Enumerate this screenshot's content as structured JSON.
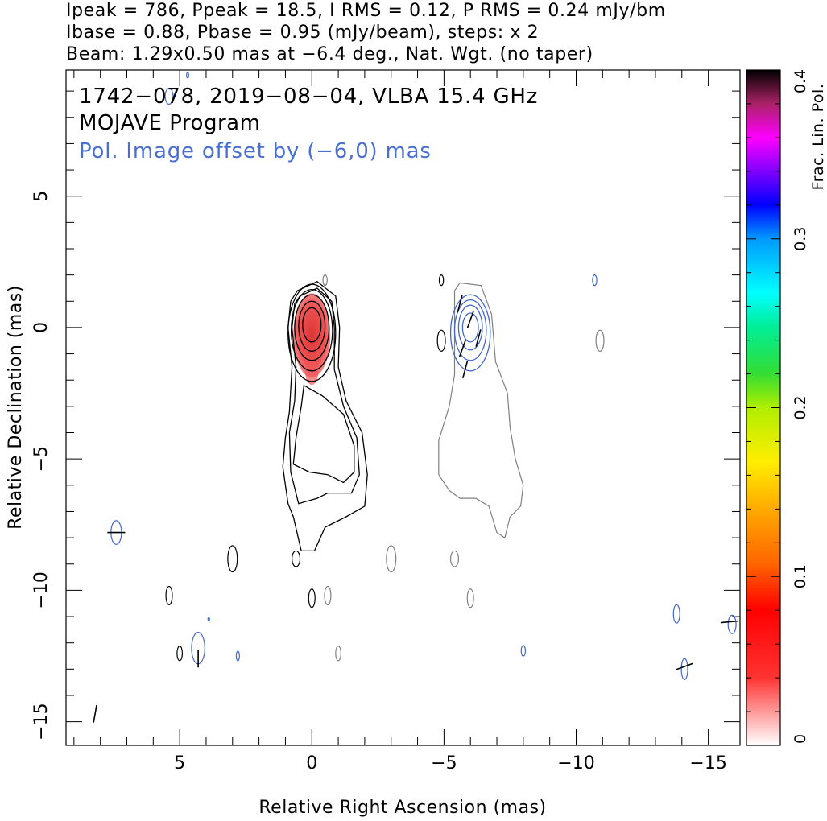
{
  "header": {
    "line1": "Ipeak = 786, Ppeak = 18.5, I RMS = 0.12, P RMS = 0.24 mJy/bm",
    "line2": "Ibase = 0.88, Pbase = 0.95 (mJy/beam), steps: x 2",
    "line3": "Beam: 1.29x0.50 mas at −6.4 deg., Nat. Wgt. (no taper)"
  },
  "chart_data": {
    "type": "contour",
    "annotations": {
      "source_line": "1742−078, 2019−08−04, VLBA 15.4 GHz",
      "program": "MOJAVE Program",
      "pol_offset": "Pol. Image offset by (−6,0) mas"
    },
    "xlabel": "Relative Right Ascension (mas)",
    "ylabel": "Relative Declination (mas)",
    "xlim": [
      9.3,
      -16.2
    ],
    "ylim": [
      -15.9,
      9.8
    ],
    "x_ticks": [
      {
        "value": 5,
        "label": "5"
      },
      {
        "value": 0,
        "label": "0"
      },
      {
        "value": -5,
        "label": "−5"
      },
      {
        "value": -10,
        "label": "−10"
      },
      {
        "value": -15,
        "label": "−15"
      }
    ],
    "y_ticks": [
      {
        "value": 5,
        "label": "5"
      },
      {
        "value": 0,
        "label": "0"
      },
      {
        "value": -5,
        "label": "−5"
      },
      {
        "value": -10,
        "label": "−10"
      },
      {
        "value": -15,
        "label": "−15"
      }
    ],
    "colorbar": {
      "label": "Frac. Lin. Pol.",
      "range": [
        0,
        0.4
      ],
      "ticks": [
        {
          "value": 0,
          "label": "0"
        },
        {
          "value": 0.1,
          "label": "0.1"
        },
        {
          "value": 0.2,
          "label": "0.2"
        },
        {
          "value": 0.3,
          "label": "0.3"
        },
        {
          "value": 0.4,
          "label": "0.4"
        }
      ]
    },
    "stokes_I_core": {
      "x": 0.0,
      "y": 0.0
    },
    "polarization_core": {
      "x": -6.0,
      "y": 0.0
    },
    "total_intensity_contours": [
      {
        "cx": 0.0,
        "cy": 0.1,
        "rx": 0.35,
        "ry": 0.65
      },
      {
        "cx": 0.0,
        "cy": 0.05,
        "rx": 0.5,
        "ry": 0.95
      },
      {
        "cx": 0.0,
        "cy": 0.0,
        "rx": 0.65,
        "ry": 1.25
      },
      {
        "cx": 0.0,
        "cy": -0.1,
        "rx": 0.78,
        "ry": 1.55
      },
      {
        "cx": 0.0,
        "cy": -0.2,
        "rx": 0.9,
        "ry": 1.85
      }
    ],
    "total_intensity_outer": [
      [
        0.55,
        1.4
      ],
      [
        -0.2,
        1.75
      ],
      [
        -0.9,
        1.2
      ],
      [
        -1.05,
        0.0
      ],
      [
        -1.0,
        -1.5
      ],
      [
        -1.3,
        -2.8
      ],
      [
        -1.9,
        -4.0
      ],
      [
        -2.1,
        -5.6
      ],
      [
        -2.0,
        -6.8
      ],
      [
        -1.3,
        -7.2
      ],
      [
        -0.5,
        -7.6
      ],
      [
        -0.1,
        -8.5
      ],
      [
        0.4,
        -8.5
      ],
      [
        0.7,
        -7.2
      ],
      [
        0.9,
        -6.7
      ],
      [
        1.1,
        -5.3
      ],
      [
        1.0,
        -4.2
      ],
      [
        0.85,
        -3.2
      ],
      [
        0.75,
        -1.5
      ],
      [
        0.9,
        0.0
      ],
      [
        0.8,
        1.0
      ]
    ],
    "total_intensity_inner": [
      [
        0.45,
        1.2
      ],
      [
        -0.2,
        1.5
      ],
      [
        -0.75,
        1.0
      ],
      [
        -0.85,
        0.0
      ],
      [
        -0.85,
        -1.6
      ],
      [
        -1.2,
        -3.0
      ],
      [
        -1.7,
        -4.2
      ],
      [
        -1.8,
        -5.6
      ],
      [
        -1.5,
        -6.3
      ],
      [
        -0.6,
        -6.3
      ],
      [
        -0.2,
        -6.5
      ],
      [
        0.5,
        -6.7
      ],
      [
        0.8,
        -5.5
      ],
      [
        0.85,
        -4.0
      ],
      [
        0.65,
        -2.8
      ],
      [
        0.6,
        -1.5
      ],
      [
        0.75,
        0.0
      ],
      [
        0.65,
        0.9
      ]
    ],
    "total_intensity_jet": [
      [
        0.3,
        -2.2
      ],
      [
        -0.4,
        -2.6
      ],
      [
        -1.2,
        -3.3
      ],
      [
        -1.6,
        -4.5
      ],
      [
        -1.6,
        -5.5
      ],
      [
        -1.2,
        -5.9
      ],
      [
        -0.6,
        -5.6
      ],
      [
        0.1,
        -5.5
      ],
      [
        0.7,
        -5.2
      ],
      [
        0.6,
        -4.2
      ],
      [
        0.4,
        -3.0
      ]
    ],
    "pol_intensity_outline": [
      [
        -5.6,
        1.7
      ],
      [
        -6.4,
        1.6
      ],
      [
        -6.8,
        0.5
      ],
      [
        -6.95,
        -1.3
      ],
      [
        -7.4,
        -2.5
      ],
      [
        -7.5,
        -3.8
      ],
      [
        -7.7,
        -5.0
      ],
      [
        -8.0,
        -6.0
      ],
      [
        -7.9,
        -6.8
      ],
      [
        -7.5,
        -7.2
      ],
      [
        -7.3,
        -8.0
      ],
      [
        -7.0,
        -7.8
      ],
      [
        -6.7,
        -6.8
      ],
      [
        -6.2,
        -6.5
      ],
      [
        -5.6,
        -6.5
      ],
      [
        -5.2,
        -6.2
      ],
      [
        -4.8,
        -5.6
      ],
      [
        -4.8,
        -4.3
      ],
      [
        -5.2,
        -3.0
      ],
      [
        -5.4,
        -1.8
      ],
      [
        -5.4,
        0.0
      ],
      [
        -5.4,
        1.4
      ]
    ],
    "pol_contours_blue": [
      {
        "cx": -6.0,
        "cy": 0.0,
        "rx": 0.3,
        "ry": 0.55
      },
      {
        "cx": -6.0,
        "cy": 0.0,
        "rx": 0.45,
        "ry": 0.85
      },
      {
        "cx": -6.0,
        "cy": -0.1,
        "rx": 0.6,
        "ry": 1.15
      },
      {
        "cx": -6.0,
        "cy": -0.2,
        "rx": 0.75,
        "ry": 1.45
      }
    ],
    "evpa_ticks": [
      {
        "x": -5.6,
        "y": 0.9,
        "angle": 15
      },
      {
        "x": -6.0,
        "y": 0.3,
        "angle": 20
      },
      {
        "x": -6.3,
        "y": -0.4,
        "angle": 15
      },
      {
        "x": -5.7,
        "y": -0.8,
        "angle": 20
      },
      {
        "x": -5.8,
        "y": -1.6,
        "angle": 15
      },
      {
        "x": 7.4,
        "y": -7.8,
        "angle": 90
      },
      {
        "x": 4.3,
        "y": -12.6,
        "angle": 0
      },
      {
        "x": 8.2,
        "y": -14.7,
        "angle": 10
      },
      {
        "x": -14.1,
        "y": -12.9,
        "angle": 70
      },
      {
        "x": -15.8,
        "y": -11.2,
        "angle": 85
      }
    ],
    "fractional_pol_patch": {
      "x": 0.0,
      "y": -0.3,
      "rx": 0.7,
      "ry": 1.6,
      "value_range": [
        0.0,
        0.08
      ]
    },
    "noise_blobs_black": [
      {
        "cx": 3.0,
        "cy": -8.8,
        "rx": 0.18,
        "ry": 0.5
      },
      {
        "cx": 0.6,
        "cy": -8.8,
        "rx": 0.15,
        "ry": 0.3
      },
      {
        "cx": 5.4,
        "cy": -10.2,
        "rx": 0.12,
        "ry": 0.35
      },
      {
        "cx": 0.0,
        "cy": -10.3,
        "rx": 0.12,
        "ry": 0.35
      },
      {
        "cx": 5.0,
        "cy": -12.4,
        "rx": 0.1,
        "ry": 0.28
      },
      {
        "cx": -4.9,
        "cy": 1.8,
        "rx": 0.08,
        "ry": 0.2
      },
      {
        "cx": -4.9,
        "cy": -0.5,
        "rx": 0.15,
        "ry": 0.4
      }
    ],
    "noise_blobs_gray": [
      {
        "cx": -3.0,
        "cy": -8.8,
        "rx": 0.18,
        "ry": 0.5
      },
      {
        "cx": -5.4,
        "cy": -8.8,
        "rx": 0.15,
        "ry": 0.3
      },
      {
        "cx": -0.6,
        "cy": -10.2,
        "rx": 0.12,
        "ry": 0.35
      },
      {
        "cx": -6.0,
        "cy": -10.3,
        "rx": 0.12,
        "ry": 0.35
      },
      {
        "cx": -1.0,
        "cy": -12.4,
        "rx": 0.1,
        "ry": 0.28
      },
      {
        "cx": -10.9,
        "cy": -0.5,
        "rx": 0.15,
        "ry": 0.4
      },
      {
        "cx": -0.5,
        "cy": 1.8,
        "rx": 0.08,
        "ry": 0.2
      }
    ],
    "noise_blobs_blue": [
      {
        "cx": 5.4,
        "cy": 8.8,
        "rx": 0.15,
        "ry": 0.3
      },
      {
        "cx": 7.4,
        "cy": -7.8,
        "rx": 0.2,
        "ry": 0.45
      },
      {
        "cx": 4.3,
        "cy": -12.2,
        "rx": 0.25,
        "ry": 0.6
      },
      {
        "cx": 2.8,
        "cy": -12.5,
        "rx": 0.06,
        "ry": 0.18
      },
      {
        "cx": -8.0,
        "cy": -12.3,
        "rx": 0.08,
        "ry": 0.2
      },
      {
        "cx": -10.7,
        "cy": 1.8,
        "rx": 0.08,
        "ry": 0.2
      },
      {
        "cx": -13.8,
        "cy": -10.9,
        "rx": 0.12,
        "ry": 0.35
      },
      {
        "cx": -14.1,
        "cy": -13.0,
        "rx": 0.12,
        "ry": 0.4
      },
      {
        "cx": -15.9,
        "cy": -11.3,
        "rx": 0.15,
        "ry": 0.35
      },
      {
        "cx": 3.9,
        "cy": -11.1,
        "rx": 0.03,
        "ry": 0.06
      },
      {
        "cx": 4.7,
        "cy": 9.6,
        "rx": 0.04,
        "ry": 0.1
      }
    ],
    "colors": {
      "total_intensity": "#000000",
      "pol_image_outline": "#808080",
      "pol_contours": "#4466cc",
      "annotation_blue": "#4a6fd4",
      "frac_pol_fill": "#e83030"
    }
  }
}
